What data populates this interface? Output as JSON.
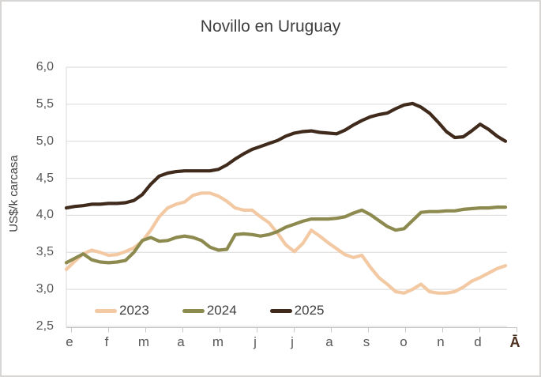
{
  "chart_data": {
    "type": "line",
    "title": "Novillo en Uruguay",
    "ylabel": "US$/k carcasa",
    "ylim": [
      2.5,
      6.0
    ],
    "y_tick_step": 0.5,
    "y_tick_labels": [
      "6,0",
      "5,5",
      "5,0",
      "4,5",
      "4,0",
      "3,5",
      "3,0",
      "2,5"
    ],
    "x_labels": [
      "e",
      "f",
      "m",
      "a",
      "m",
      "j",
      "j",
      "a",
      "s",
      "o",
      "n",
      "d",
      "Ā"
    ],
    "x_last_label_color": "#4b2e1c",
    "x_unit": "weeks",
    "grid": "horizontal",
    "legend_position": "bottom-left",
    "axis_color": "#c8c6c4",
    "grid_color": "#d9d9d9",
    "series": [
      {
        "name": "2023",
        "color": "#f2c9a2",
        "values": [
          3.27,
          3.38,
          3.48,
          3.53,
          3.5,
          3.46,
          3.47,
          3.51,
          3.56,
          3.65,
          3.8,
          3.98,
          4.1,
          4.15,
          4.18,
          4.27,
          4.3,
          4.3,
          4.26,
          4.19,
          4.1,
          4.07,
          4.07,
          3.98,
          3.9,
          3.76,
          3.6,
          3.51,
          3.62,
          3.8,
          3.72,
          3.63,
          3.55,
          3.47,
          3.43,
          3.46,
          3.3,
          3.16,
          3.07,
          2.97,
          2.95,
          3.0,
          3.07,
          2.97,
          2.95,
          2.95,
          2.97,
          3.03,
          3.11,
          3.16,
          3.22,
          3.28,
          3.32
        ]
      },
      {
        "name": "2024",
        "color": "#8c8a4e",
        "values": [
          3.36,
          3.42,
          3.48,
          3.4,
          3.37,
          3.36,
          3.37,
          3.39,
          3.5,
          3.66,
          3.7,
          3.65,
          3.66,
          3.7,
          3.72,
          3.7,
          3.66,
          3.57,
          3.53,
          3.54,
          3.74,
          3.75,
          3.74,
          3.72,
          3.74,
          3.78,
          3.84,
          3.88,
          3.92,
          3.95,
          3.95,
          3.95,
          3.96,
          3.98,
          4.03,
          4.07,
          4.01,
          3.93,
          3.85,
          3.8,
          3.82,
          3.93,
          4.04,
          4.05,
          4.05,
          4.06,
          4.06,
          4.08,
          4.09,
          4.1,
          4.1,
          4.11,
          4.11
        ]
      },
      {
        "name": "2025",
        "color": "#3f2a1c",
        "values": [
          4.1,
          4.12,
          4.13,
          4.15,
          4.15,
          4.16,
          4.16,
          4.17,
          4.2,
          4.28,
          4.42,
          4.53,
          4.57,
          4.59,
          4.6,
          4.6,
          4.6,
          4.6,
          4.62,
          4.68,
          4.76,
          4.83,
          4.89,
          4.93,
          4.97,
          5.01,
          5.07,
          5.11,
          5.13,
          5.14,
          5.12,
          5.11,
          5.1,
          5.15,
          5.22,
          5.28,
          5.33,
          5.36,
          5.38,
          5.44,
          5.49,
          5.51,
          5.46,
          5.38,
          5.26,
          5.13,
          5.05,
          5.06,
          5.14,
          5.23,
          5.16,
          5.07,
          5.0
        ]
      }
    ]
  }
}
